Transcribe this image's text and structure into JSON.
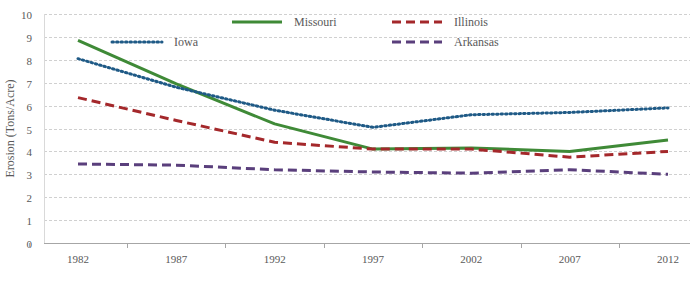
{
  "chart_data": {
    "type": "line",
    "y_label": "Erosion (Tons/Acre)",
    "categories": [
      "1982",
      "1987",
      "1992",
      "1997",
      "2002",
      "2007",
      "2012"
    ],
    "series": [
      {
        "name": "Missouri",
        "color": "#3f8a37",
        "line_style": "solid",
        "values": [
          8.85,
          6.95,
          5.2,
          4.1,
          4.15,
          4.0,
          4.5
        ]
      },
      {
        "name": "Illinois",
        "color": "#a4282b",
        "line_style": "dashed",
        "values": [
          6.35,
          5.35,
          4.4,
          4.1,
          4.1,
          3.75,
          4.0
        ]
      },
      {
        "name": "Iowa",
        "color": "#1f5a86",
        "line_style": "dotted",
        "values": [
          8.05,
          6.8,
          5.8,
          5.05,
          5.6,
          5.7,
          5.9
        ]
      },
      {
        "name": "Arkansas",
        "color": "#5a3f7c",
        "line_style": "dashed",
        "values": [
          3.45,
          3.4,
          3.2,
          3.1,
          3.05,
          3.2,
          3.0
        ]
      }
    ],
    "ylim": [
      0,
      10
    ],
    "yticks": [
      0,
      1,
      2,
      3,
      4,
      5,
      6,
      7,
      8,
      9,
      10
    ],
    "grid": true,
    "legend": "top"
  }
}
